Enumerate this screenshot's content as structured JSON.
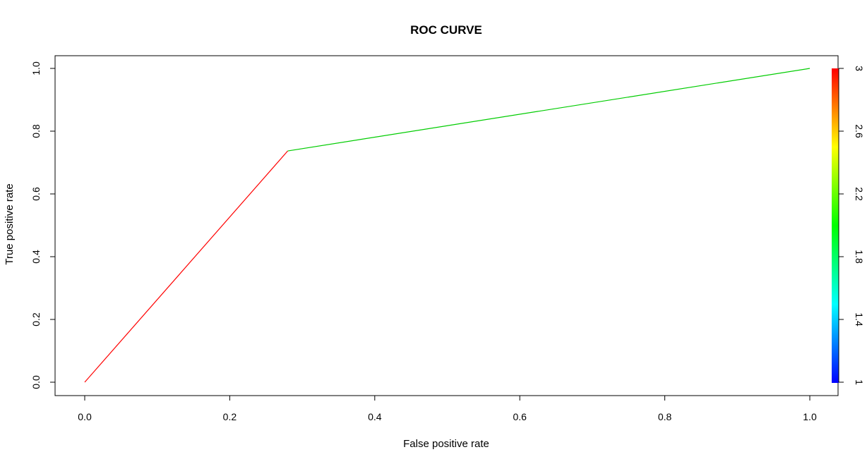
{
  "chart_data": {
    "type": "line",
    "title": "ROC CURVE",
    "xlabel": "False positive rate",
    "ylabel": "True positive rate",
    "xlim": [
      0,
      1
    ],
    "ylim": [
      0,
      1
    ],
    "x_ticks": [
      "0.0",
      "0.2",
      "0.4",
      "0.6",
      "0.8",
      "1.0"
    ],
    "y_ticks": [
      "0.0",
      "0.2",
      "0.4",
      "0.6",
      "0.8",
      "1.0"
    ],
    "grid": false,
    "series": [
      {
        "segments": [
          {
            "x": [
              0.0,
              0.28
            ],
            "y": [
              0.0,
              0.737
            ],
            "color": "#ff0000"
          },
          {
            "x": [
              0.28,
              1.0
            ],
            "y": [
              0.737,
              1.0
            ],
            "color": "#00cc00"
          }
        ]
      }
    ],
    "colorbar": {
      "range": [
        1,
        3
      ],
      "ticks": [
        "1",
        "1.4",
        "1.8",
        "2.2",
        "2.6",
        "3"
      ],
      "placement": "right",
      "colors": [
        "#0000ff",
        "#00ffff",
        "#00ff00",
        "#ffff00",
        "#ff0000"
      ]
    }
  }
}
